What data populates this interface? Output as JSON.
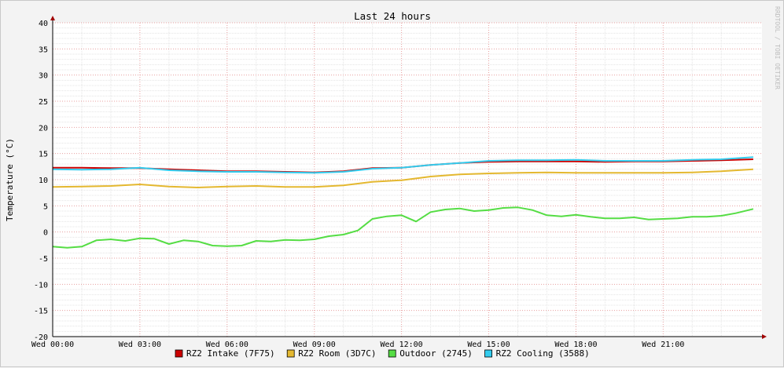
{
  "chart_data": {
    "type": "line",
    "title": "Last 24 hours",
    "ylabel": "Temperature (°C)",
    "xlabel": "",
    "watermark": "RRDTOOL / TOBI OETIKER",
    "ylim": [
      -20,
      40
    ],
    "y_ticks": [
      40,
      35,
      30,
      25,
      20,
      15,
      10,
      5,
      0,
      -5,
      -10,
      -15,
      -20
    ],
    "xlim": [
      0,
      24.4
    ],
    "x_ticks": [
      {
        "t": 0,
        "label": "Wed 00:00"
      },
      {
        "t": 3,
        "label": "Wed 03:00"
      },
      {
        "t": 6,
        "label": "Wed 06:00"
      },
      {
        "t": 9,
        "label": "Wed 09:00"
      },
      {
        "t": 12,
        "label": "Wed 12:00"
      },
      {
        "t": 15,
        "label": "Wed 15:00"
      },
      {
        "t": 18,
        "label": "Wed 18:00"
      },
      {
        "t": 21,
        "label": "Wed 21:00"
      }
    ],
    "grid": true,
    "legend_position": "bottom",
    "series": [
      {
        "name": "RZ2 Intake (7F75)",
        "color": "#cc0000",
        "x": [
          0,
          1,
          2,
          3,
          4,
          5,
          6,
          7,
          8,
          9,
          10,
          11,
          12,
          13,
          14,
          15,
          16,
          17,
          18,
          19,
          20,
          21,
          22,
          23,
          24.1
        ],
        "y": [
          12.3,
          12.3,
          12.2,
          12.2,
          12.0,
          11.8,
          11.6,
          11.6,
          11.5,
          11.4,
          11.6,
          12.2,
          12.3,
          12.8,
          13.2,
          13.4,
          13.5,
          13.5,
          13.5,
          13.4,
          13.5,
          13.5,
          13.6,
          13.7,
          13.9
        ]
      },
      {
        "name": "RZ2 Room (3D7C)",
        "color": "#e4b830",
        "x": [
          0,
          1,
          2,
          3,
          4,
          5,
          6,
          7,
          8,
          9,
          10,
          11,
          12,
          13,
          14,
          15,
          16,
          17,
          18,
          19,
          20,
          21,
          22,
          23,
          24.1
        ],
        "y": [
          8.6,
          8.7,
          8.8,
          9.1,
          8.7,
          8.5,
          8.7,
          8.8,
          8.6,
          8.6,
          8.9,
          9.6,
          9.9,
          10.6,
          11.0,
          11.2,
          11.3,
          11.4,
          11.3,
          11.3,
          11.3,
          11.3,
          11.4,
          11.6,
          12.0
        ]
      },
      {
        "name": "Outdoor (2745)",
        "color": "#55dd44",
        "x": [
          0,
          0.5,
          1,
          1.5,
          2,
          2.5,
          3,
          3.5,
          4,
          4.5,
          5,
          5.5,
          6,
          6.5,
          7,
          7.5,
          8,
          8.5,
          9,
          9.5,
          10,
          10.5,
          11,
          11.5,
          12,
          12.5,
          13,
          13.5,
          14,
          14.5,
          15,
          15.5,
          16,
          16.5,
          17,
          17.5,
          18,
          18.5,
          19,
          19.5,
          20,
          20.5,
          21,
          21.5,
          22,
          22.5,
          23,
          23.5,
          24.1
        ],
        "y": [
          -2.8,
          -3.0,
          -2.8,
          -1.6,
          -1.4,
          -1.7,
          -1.2,
          -1.3,
          -2.3,
          -1.6,
          -1.8,
          -2.6,
          -2.7,
          -2.6,
          -1.7,
          -1.8,
          -1.5,
          -1.6,
          -1.4,
          -0.8,
          -0.5,
          0.3,
          2.5,
          3.0,
          3.2,
          2.0,
          3.8,
          4.3,
          4.5,
          4.0,
          4.2,
          4.6,
          4.7,
          4.2,
          3.2,
          3.0,
          3.3,
          2.9,
          2.6,
          2.6,
          2.8,
          2.4,
          2.5,
          2.6,
          2.9,
          2.9,
          3.1,
          3.6,
          4.4
        ]
      },
      {
        "name": "RZ2 Cooling (3588)",
        "color": "#33ccee",
        "x": [
          0,
          1,
          2,
          3,
          4,
          5,
          6,
          7,
          8,
          9,
          10,
          11,
          12,
          13,
          14,
          15,
          16,
          17,
          18,
          19,
          20,
          21,
          22,
          23,
          24.1
        ],
        "y": [
          12.0,
          11.9,
          12.0,
          12.3,
          11.8,
          11.6,
          11.5,
          11.5,
          11.4,
          11.3,
          11.5,
          12.1,
          12.3,
          12.8,
          13.2,
          13.6,
          13.7,
          13.7,
          13.8,
          13.6,
          13.6,
          13.6,
          13.8,
          13.9,
          14.3
        ]
      }
    ]
  }
}
